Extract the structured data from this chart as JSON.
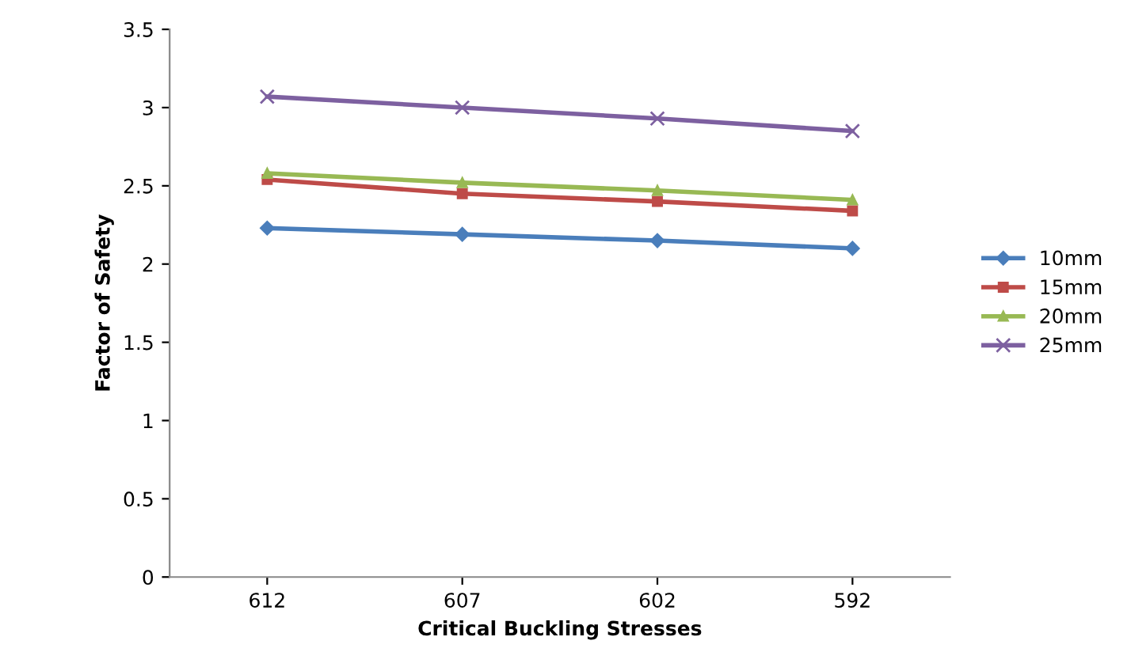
{
  "chart_data": {
    "type": "line",
    "xlabel": "Critical Buckling Stresses",
    "ylabel": "Factor of Safety",
    "categories": [
      "612",
      "607",
      "602",
      "592"
    ],
    "ylim": [
      0,
      3.5
    ],
    "yticks": [
      0,
      0.5,
      1,
      1.5,
      2,
      2.5,
      3,
      3.5
    ],
    "grid": false,
    "legend": "right",
    "series": [
      {
        "name": "10mm",
        "color": "#4a7ebb",
        "marker": "diamond",
        "values": [
          2.23,
          2.19,
          2.15,
          2.1
        ]
      },
      {
        "name": "15mm",
        "color": "#be4b48",
        "marker": "square",
        "values": [
          2.54,
          2.45,
          2.4,
          2.34
        ]
      },
      {
        "name": "20mm",
        "color": "#98b954",
        "marker": "triangle",
        "values": [
          2.58,
          2.52,
          2.47,
          2.41
        ]
      },
      {
        "name": "25mm",
        "color": "#7d60a0",
        "marker": "cross",
        "values": [
          3.07,
          3.0,
          2.93,
          2.85
        ]
      }
    ]
  }
}
